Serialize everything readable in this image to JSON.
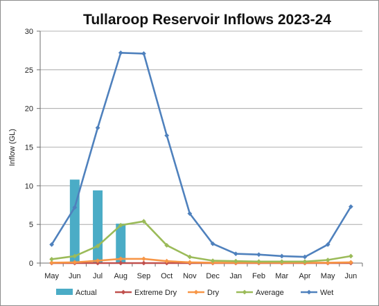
{
  "chart_data": {
    "type": "line",
    "title": "Tullaroop Reservoir Inflows 2023-24",
    "ylabel": "Inflow (GL)",
    "xlabel": "",
    "ylim": [
      0,
      30
    ],
    "yticks": [
      "0",
      "5",
      "10",
      "15",
      "20",
      "25",
      "30"
    ],
    "categories": [
      "May",
      "Jun",
      "Jul",
      "Aug",
      "Sep",
      "Oct",
      "Nov",
      "Dec",
      "Jan",
      "Feb",
      "Mar",
      "Apr",
      "May",
      "Jun"
    ],
    "grid": true,
    "legend_position": "bottom",
    "series": [
      {
        "name": "Actual",
        "kind": "bar",
        "color": "#4bacc6",
        "values": [
          null,
          10.8,
          9.4,
          5.1,
          null,
          null,
          null,
          null,
          null,
          null,
          null,
          null,
          null,
          null
        ]
      },
      {
        "name": "Extreme Dry",
        "kind": "line",
        "color": "#c0504d",
        "values": [
          0.0,
          0.0,
          0.0,
          0.0,
          0.0,
          0.0,
          0.0,
          0.0,
          0.0,
          0.0,
          0.0,
          0.0,
          0.0,
          0.0
        ]
      },
      {
        "name": "Dry",
        "kind": "line",
        "color": "#f79646",
        "values": [
          0.05,
          0.1,
          0.3,
          0.55,
          0.55,
          0.25,
          0.1,
          0.05,
          0.05,
          0.05,
          0.05,
          0.05,
          0.05,
          0.1
        ]
      },
      {
        "name": "Average",
        "kind": "line",
        "color": "#9bbb59",
        "values": [
          0.5,
          0.9,
          2.2,
          4.9,
          5.4,
          2.3,
          0.8,
          0.3,
          0.25,
          0.2,
          0.2,
          0.2,
          0.4,
          0.9
        ]
      },
      {
        "name": "Wet",
        "kind": "line",
        "color": "#4f81bd",
        "values": [
          2.4,
          7.2,
          17.5,
          27.2,
          27.1,
          16.5,
          6.4,
          2.5,
          1.2,
          1.1,
          0.9,
          0.8,
          2.4,
          7.3
        ]
      }
    ]
  }
}
